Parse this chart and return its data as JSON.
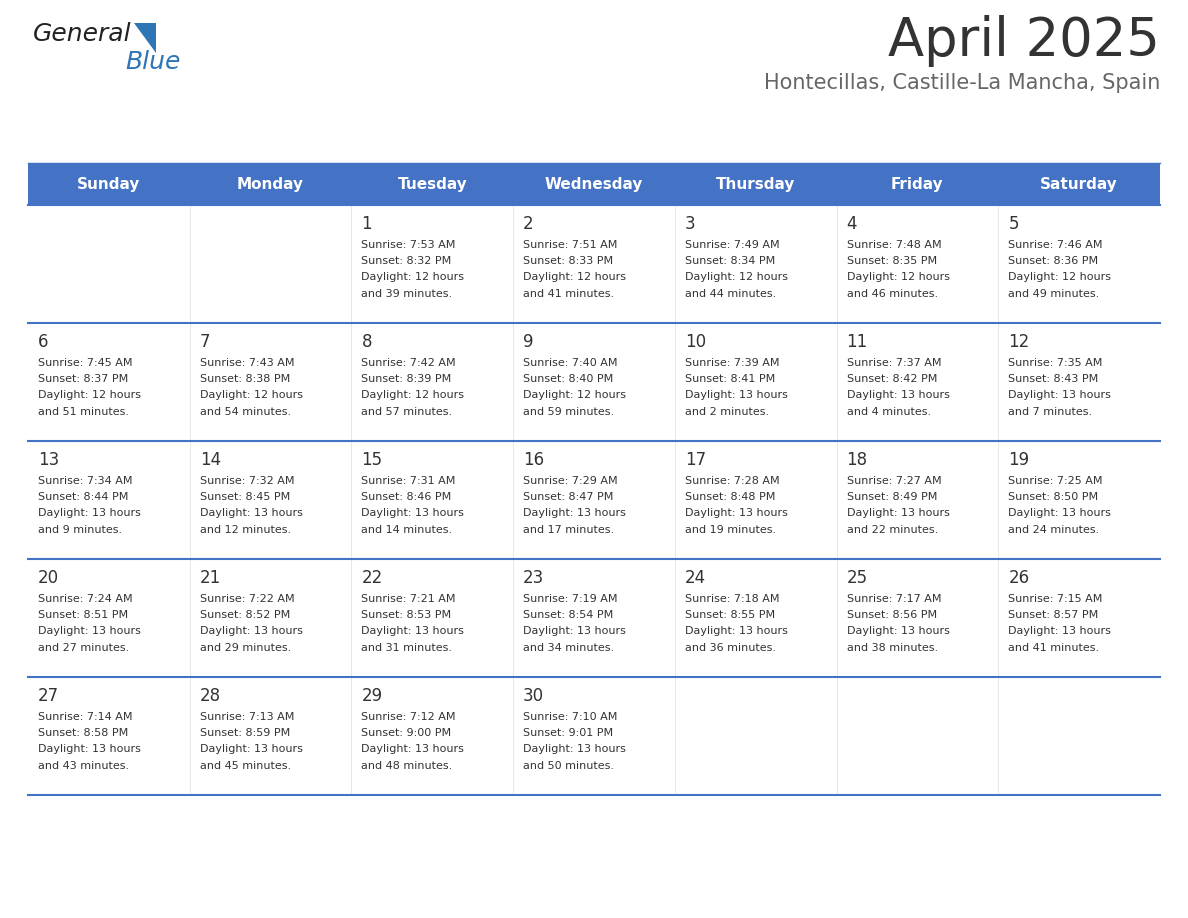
{
  "title": "April 2025",
  "subtitle": "Hontecillas, Castille-La Mancha, Spain",
  "title_color": "#333333",
  "subtitle_color": "#666666",
  "header_bg_color": "#4472C4",
  "header_text_color": "#FFFFFF",
  "days_of_week": [
    "Sunday",
    "Monday",
    "Tuesday",
    "Wednesday",
    "Thursday",
    "Friday",
    "Saturday"
  ],
  "cell_bg_color": "#FFFFFF",
  "row_line_color": "#4472C4",
  "text_color": "#333333",
  "calendar": [
    [
      {
        "day": "",
        "sunrise": "",
        "sunset": "",
        "daylight": ""
      },
      {
        "day": "",
        "sunrise": "",
        "sunset": "",
        "daylight": ""
      },
      {
        "day": "1",
        "sunrise": "7:53 AM",
        "sunset": "8:32 PM",
        "daylight_line1": "Daylight: 12 hours",
        "daylight_line2": "and 39 minutes."
      },
      {
        "day": "2",
        "sunrise": "7:51 AM",
        "sunset": "8:33 PM",
        "daylight_line1": "Daylight: 12 hours",
        "daylight_line2": "and 41 minutes."
      },
      {
        "day": "3",
        "sunrise": "7:49 AM",
        "sunset": "8:34 PM",
        "daylight_line1": "Daylight: 12 hours",
        "daylight_line2": "and 44 minutes."
      },
      {
        "day": "4",
        "sunrise": "7:48 AM",
        "sunset": "8:35 PM",
        "daylight_line1": "Daylight: 12 hours",
        "daylight_line2": "and 46 minutes."
      },
      {
        "day": "5",
        "sunrise": "7:46 AM",
        "sunset": "8:36 PM",
        "daylight_line1": "Daylight: 12 hours",
        "daylight_line2": "and 49 minutes."
      }
    ],
    [
      {
        "day": "6",
        "sunrise": "7:45 AM",
        "sunset": "8:37 PM",
        "daylight_line1": "Daylight: 12 hours",
        "daylight_line2": "and 51 minutes."
      },
      {
        "day": "7",
        "sunrise": "7:43 AM",
        "sunset": "8:38 PM",
        "daylight_line1": "Daylight: 12 hours",
        "daylight_line2": "and 54 minutes."
      },
      {
        "day": "8",
        "sunrise": "7:42 AM",
        "sunset": "8:39 PM",
        "daylight_line1": "Daylight: 12 hours",
        "daylight_line2": "and 57 minutes."
      },
      {
        "day": "9",
        "sunrise": "7:40 AM",
        "sunset": "8:40 PM",
        "daylight_line1": "Daylight: 12 hours",
        "daylight_line2": "and 59 minutes."
      },
      {
        "day": "10",
        "sunrise": "7:39 AM",
        "sunset": "8:41 PM",
        "daylight_line1": "Daylight: 13 hours",
        "daylight_line2": "and 2 minutes."
      },
      {
        "day": "11",
        "sunrise": "7:37 AM",
        "sunset": "8:42 PM",
        "daylight_line1": "Daylight: 13 hours",
        "daylight_line2": "and 4 minutes."
      },
      {
        "day": "12",
        "sunrise": "7:35 AM",
        "sunset": "8:43 PM",
        "daylight_line1": "Daylight: 13 hours",
        "daylight_line2": "and 7 minutes."
      }
    ],
    [
      {
        "day": "13",
        "sunrise": "7:34 AM",
        "sunset": "8:44 PM",
        "daylight_line1": "Daylight: 13 hours",
        "daylight_line2": "and 9 minutes."
      },
      {
        "day": "14",
        "sunrise": "7:32 AM",
        "sunset": "8:45 PM",
        "daylight_line1": "Daylight: 13 hours",
        "daylight_line2": "and 12 minutes."
      },
      {
        "day": "15",
        "sunrise": "7:31 AM",
        "sunset": "8:46 PM",
        "daylight_line1": "Daylight: 13 hours",
        "daylight_line2": "and 14 minutes."
      },
      {
        "day": "16",
        "sunrise": "7:29 AM",
        "sunset": "8:47 PM",
        "daylight_line1": "Daylight: 13 hours",
        "daylight_line2": "and 17 minutes."
      },
      {
        "day": "17",
        "sunrise": "7:28 AM",
        "sunset": "8:48 PM",
        "daylight_line1": "Daylight: 13 hours",
        "daylight_line2": "and 19 minutes."
      },
      {
        "day": "18",
        "sunrise": "7:27 AM",
        "sunset": "8:49 PM",
        "daylight_line1": "Daylight: 13 hours",
        "daylight_line2": "and 22 minutes."
      },
      {
        "day": "19",
        "sunrise": "7:25 AM",
        "sunset": "8:50 PM",
        "daylight_line1": "Daylight: 13 hours",
        "daylight_line2": "and 24 minutes."
      }
    ],
    [
      {
        "day": "20",
        "sunrise": "7:24 AM",
        "sunset": "8:51 PM",
        "daylight_line1": "Daylight: 13 hours",
        "daylight_line2": "and 27 minutes."
      },
      {
        "day": "21",
        "sunrise": "7:22 AM",
        "sunset": "8:52 PM",
        "daylight_line1": "Daylight: 13 hours",
        "daylight_line2": "and 29 minutes."
      },
      {
        "day": "22",
        "sunrise": "7:21 AM",
        "sunset": "8:53 PM",
        "daylight_line1": "Daylight: 13 hours",
        "daylight_line2": "and 31 minutes."
      },
      {
        "day": "23",
        "sunrise": "7:19 AM",
        "sunset": "8:54 PM",
        "daylight_line1": "Daylight: 13 hours",
        "daylight_line2": "and 34 minutes."
      },
      {
        "day": "24",
        "sunrise": "7:18 AM",
        "sunset": "8:55 PM",
        "daylight_line1": "Daylight: 13 hours",
        "daylight_line2": "and 36 minutes."
      },
      {
        "day": "25",
        "sunrise": "7:17 AM",
        "sunset": "8:56 PM",
        "daylight_line1": "Daylight: 13 hours",
        "daylight_line2": "and 38 minutes."
      },
      {
        "day": "26",
        "sunrise": "7:15 AM",
        "sunset": "8:57 PM",
        "daylight_line1": "Daylight: 13 hours",
        "daylight_line2": "and 41 minutes."
      }
    ],
    [
      {
        "day": "27",
        "sunrise": "7:14 AM",
        "sunset": "8:58 PM",
        "daylight_line1": "Daylight: 13 hours",
        "daylight_line2": "and 43 minutes."
      },
      {
        "day": "28",
        "sunrise": "7:13 AM",
        "sunset": "8:59 PM",
        "daylight_line1": "Daylight: 13 hours",
        "daylight_line2": "and 45 minutes."
      },
      {
        "day": "29",
        "sunrise": "7:12 AM",
        "sunset": "9:00 PM",
        "daylight_line1": "Daylight: 13 hours",
        "daylight_line2": "and 48 minutes."
      },
      {
        "day": "30",
        "sunrise": "7:10 AM",
        "sunset": "9:01 PM",
        "daylight_line1": "Daylight: 13 hours",
        "daylight_line2": "and 50 minutes."
      },
      {
        "day": "",
        "sunrise": "",
        "sunset": "",
        "daylight_line1": "",
        "daylight_line2": ""
      },
      {
        "day": "",
        "sunrise": "",
        "sunset": "",
        "daylight_line1": "",
        "daylight_line2": ""
      },
      {
        "day": "",
        "sunrise": "",
        "sunset": "",
        "daylight_line1": "",
        "daylight_line2": ""
      }
    ]
  ],
  "logo_text_general": "General",
  "logo_text_blue": "Blue",
  "logo_triangle_color": "#2E75B6",
  "logo_general_color": "#222222"
}
